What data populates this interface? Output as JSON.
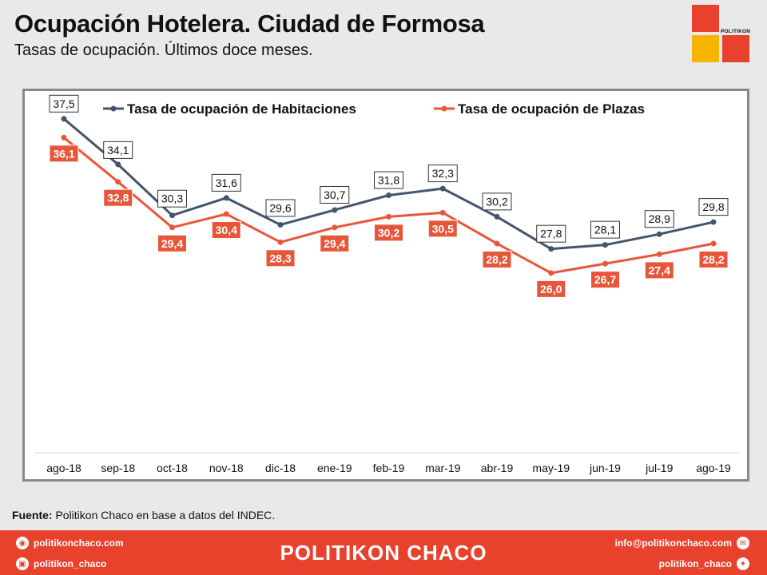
{
  "header": {
    "title": "Ocupación Hotelera. Ciudad de Formosa",
    "subtitle": "Tasas de ocupación. Últimos doce meses."
  },
  "logo": {
    "text": "POLITIKON"
  },
  "chart_data": {
    "type": "line",
    "categories": [
      "ago-18",
      "sep-18",
      "oct-18",
      "nov-18",
      "dic-18",
      "ene-19",
      "feb-19",
      "mar-19",
      "abr-19",
      "may-19",
      "jun-19",
      "jul-19",
      "ago-19"
    ],
    "series": [
      {
        "name": "Tasa de ocupación de Habitaciones",
        "color": "#44546a",
        "values": [
          37.5,
          34.1,
          30.3,
          31.6,
          29.6,
          30.7,
          31.8,
          32.3,
          30.2,
          27.8,
          28.1,
          28.9,
          29.8
        ],
        "labels": [
          "37,5",
          "34,1",
          "30,3",
          "31,6",
          "29,6",
          "30,7",
          "31,8",
          "32,3",
          "30,2",
          "27,8",
          "28,1",
          "28,9",
          "29,8"
        ]
      },
      {
        "name": "Tasa de ocupación de Plazas",
        "color": "#e8563a",
        "values": [
          36.1,
          32.8,
          29.4,
          30.4,
          28.3,
          29.4,
          30.2,
          30.5,
          28.2,
          26.0,
          26.7,
          27.4,
          28.2
        ],
        "labels": [
          "36,1",
          "32,8",
          "29,4",
          "30,4",
          "28,3",
          "29,4",
          "30,2",
          "30,5",
          "28,2",
          "26,0",
          "26,7",
          "27,4",
          "28,2"
        ]
      }
    ],
    "legend": "top",
    "grid": false,
    "ylim": [
      14.5,
      38.5
    ]
  },
  "source": {
    "label": "Fuente:",
    "text": " Politikon Chaco en base a datos del INDEC."
  },
  "footer": {
    "brand": "POLITIKON CHACO",
    "website": "politikonchaco.com",
    "instagram": "politikon_chaco",
    "email": "info@politikonchaco.com",
    "twitter": "politikon_chaco"
  }
}
